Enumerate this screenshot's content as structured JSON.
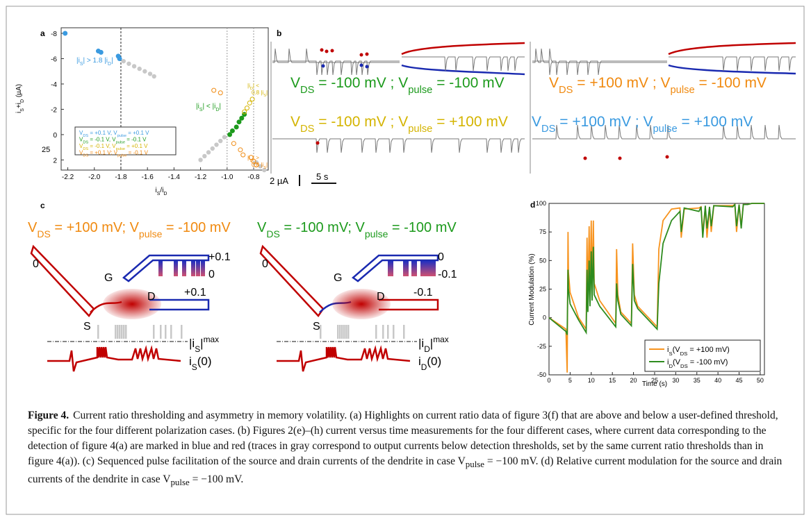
{
  "figure": {
    "panel_a": {
      "letter": "a",
      "xlabel": [
        "i",
        "S",
        "/i",
        "D"
      ],
      "ylabel": [
        "i",
        "S",
        "+i",
        "D",
        " (µA)"
      ],
      "edge_label": "25",
      "xlim": [
        -2.25,
        -0.69
      ],
      "ylim": [
        -8.44,
        2.8
      ],
      "xticks": [
        -2.2,
        {
          "value": -2,
          "label": "-2.0"
        },
        -1.8,
        -1.6,
        -1.4,
        -1.2,
        {
          "value": -1,
          "label": "-1.0"
        },
        -0.8
      ],
      "yticks": [
        -8,
        -6,
        -4,
        -2,
        0,
        2
      ],
      "thresholds": [
        -1.8,
        -1.0,
        -0.8
      ],
      "gray_points": {
        "color": "#c8c8c8",
        "x": [
          -1.78,
          -1.74,
          -1.7,
          -1.66,
          -1.62,
          -1.58,
          -1.55,
          -1.2,
          -1.17,
          -1.14,
          -1.11,
          -1.08,
          -1.05,
          -1.02,
          -0.78,
          -0.75,
          -0.72
        ],
        "y": [
          -5.8,
          -5.6,
          -5.4,
          -5.2,
          -5.0,
          -4.8,
          -4.6,
          2.0,
          1.7,
          1.4,
          1.1,
          0.8,
          0.5,
          0.2,
          2.2,
          2.5,
          2.8
        ]
      },
      "series": [
        {
          "name": [
            "V",
            "DS",
            " = +0.1 V, V",
            "pulse",
            " = +0.1 V"
          ],
          "color": "#3a9ae0",
          "filled": true,
          "x": [
            -2.22,
            -1.97,
            -1.95,
            -1.82,
            -1.81
          ],
          "y": [
            -8.0,
            -6.6,
            -6.5,
            -6.2,
            -6.0
          ]
        },
        {
          "name": [
            "V",
            "DS",
            " = -0.1 V, V",
            "pulse",
            " = -0.1 V"
          ],
          "color": "#1c9a1c",
          "filled": true,
          "x": [
            -0.98,
            -0.96,
            -0.93,
            -0.91,
            -0.89,
            -0.87
          ],
          "y": [
            0.0,
            -0.3,
            -0.6,
            -1.0,
            -1.3,
            -1.6
          ]
        },
        {
          "name": [
            "V",
            "DS",
            " = -0.1 V, V",
            "pulse",
            " = +0.1 V"
          ],
          "color": "#d4b400",
          "filled": false,
          "x": [
            -0.87,
            -0.85,
            -0.83,
            -0.81
          ],
          "y": [
            -1.8,
            -2.1,
            -2.5,
            -2.8
          ]
        },
        {
          "name": [
            "V",
            "DS",
            " = +0.1 V; V",
            "pulse",
            " = -0.1 V"
          ],
          "color": "#f08a10",
          "filled": false,
          "x": [
            -1.1,
            -1.05,
            -0.95,
            -0.9,
            -0.88,
            -0.82,
            -0.8,
            -0.78
          ],
          "y": [
            -3.5,
            -3.3,
            0.7,
            1.2,
            1.6,
            1.8,
            2.1,
            2.4
          ]
        }
      ],
      "annotations": [
        {
          "parts": [
            "|i",
            "S",
            "| > 1.8 |i",
            "D",
            "|"
          ],
          "color": "#3a9ae0"
        },
        {
          "parts": [
            "|i",
            "S",
            "| < |i",
            "D",
            "|"
          ],
          "color": "#1c9a1c"
        },
        {
          "parts": [
            "|i",
            "D",
            "| <"
          ],
          "color": "#d4b400"
        },
        {
          "parts": [
            "0.8 |i",
            "S",
            "|"
          ],
          "color": "#d4b400"
        },
        {
          "parts": [
            "|i",
            "D",
            "| >"
          ],
          "color": "#f08a10"
        },
        {
          "parts": [
            "0.8 |i",
            "S",
            "|"
          ],
          "color": "#f08a10"
        }
      ]
    },
    "panel_b": {
      "letter": "b",
      "labels": [
        {
          "parts": [
            "V",
            "DS",
            " = -100 mV ; V",
            "pulse",
            " = -100 mV"
          ],
          "color": "#1c9a1c"
        },
        {
          "parts": [
            "V",
            "DS",
            " = +100 mV ; V",
            "pulse",
            " = -100 mV"
          ],
          "color": "#f08a10"
        },
        {
          "parts": [
            "V",
            "DS",
            " = -100 mV ; V",
            "pulse",
            " = +100 mV"
          ],
          "color": "#d4b400"
        },
        {
          "parts": [
            "V",
            "DS",
            " = +100 mV ; V",
            "pulse",
            " = +100 mV"
          ],
          "color": "#3a9ae0"
        }
      ],
      "scale_current": "2 µA",
      "scale_time": "5 s"
    },
    "panel_c": {
      "letter": "c",
      "left": {
        "header": [
          "V",
          "DS",
          " = +100 mV; V",
          "pulse",
          " = -100 mV"
        ],
        "header_color": "#f08a10",
        "source": "0",
        "gate": "G",
        "gate_top": "+0.1",
        "gate_bottom": "0",
        "s": "S",
        "d": "D",
        "drain": "+0.1",
        "threshold": {
          "base": "|i",
          "sub": "S",
          "close": "|",
          "sup": "max"
        },
        "trace": [
          "i",
          "S",
          "(0)"
        ]
      },
      "right": {
        "header": [
          "V",
          "DS",
          " = -100 mV; V",
          "pulse",
          " = -100 mV"
        ],
        "header_color": "#1c9a1c",
        "source": "0",
        "gate": "G",
        "gate_top": "0",
        "gate_bottom": "-0.1",
        "s": "S",
        "d": "D",
        "drain": "-0.1",
        "threshold": {
          "base": "|i",
          "sub": "D",
          "close": "|",
          "sup": "max"
        },
        "trace": [
          "i",
          "D",
          "(0)"
        ]
      }
    },
    "panel_d": {
      "letter": "d",
      "xlabel": "Time (s)",
      "ylabel": "Current Modulation (%)",
      "xlim": [
        0,
        51
      ],
      "ylim": [
        -50,
        100
      ],
      "xticks": [
        0,
        5,
        10,
        15,
        20,
        25,
        30,
        35,
        40,
        45,
        50
      ],
      "yticks": [
        -50,
        -25,
        0,
        25,
        50,
        75,
        100
      ],
      "series": [
        {
          "name": [
            "i",
            "S",
            "(V",
            "DS",
            " = +100 mV)"
          ],
          "color": "#f7931e",
          "x": [
            0,
            2,
            4,
            4.3,
            4.5,
            4.6,
            5,
            7,
            8.8,
            9,
            9.2,
            9.5,
            9.7,
            10,
            10.2,
            10.5,
            10.7,
            12,
            15.8,
            16,
            16.3,
            17,
            19.5,
            19.8,
            20.2,
            21,
            25.6,
            26,
            27,
            29,
            31,
            31.3,
            32,
            35.5,
            36,
            36.4,
            37,
            37.4,
            38,
            38.4,
            39,
            43.5,
            44,
            44.4,
            45,
            45.5,
            46,
            47,
            48,
            50,
            51
          ],
          "values": [
            0,
            -5,
            -10,
            -48,
            75,
            40,
            22,
            0,
            -10,
            70,
            10,
            80,
            20,
            85,
            25,
            85,
            30,
            15,
            -5,
            60,
            20,
            5,
            -5,
            65,
            20,
            10,
            -8,
            60,
            85,
            95,
            96,
            70,
            95,
            96,
            97,
            75,
            96,
            70,
            97,
            75,
            98,
            98,
            99,
            75,
            99,
            80,
            99,
            99,
            100,
            100,
            100
          ]
        },
        {
          "name": [
            "i",
            "D",
            "(V",
            "DS",
            " = -100 mV)"
          ],
          "color": "#2e8b1e",
          "x": [
            0,
            2,
            4,
            4.3,
            4.5,
            4.6,
            5,
            7,
            8.8,
            9,
            9.2,
            9.5,
            9.7,
            10,
            10.2,
            10.5,
            10.7,
            12,
            15.8,
            16,
            16.3,
            17,
            19.5,
            19.8,
            20.2,
            21,
            25.6,
            26,
            27,
            29,
            31,
            31.3,
            32,
            35.5,
            36,
            36.4,
            37,
            37.4,
            38,
            38.4,
            39,
            43.5,
            44,
            44.4,
            45,
            45.5,
            46,
            47,
            48,
            50,
            51
          ],
          "values": [
            0,
            -6,
            -12,
            -15,
            42,
            25,
            12,
            -2,
            -13,
            42,
            5,
            50,
            10,
            58,
            15,
            62,
            20,
            10,
            -8,
            30,
            15,
            3,
            -7,
            47,
            15,
            8,
            -10,
            30,
            65,
            85,
            93,
            75,
            96,
            93,
            97,
            70,
            98,
            78,
            97,
            80,
            98,
            97,
            99,
            80,
            99,
            78,
            99,
            99,
            100,
            100,
            100
          ]
        }
      ]
    },
    "caption": {
      "label": "Figure 4.",
      "parts": [
        "Current ratio thresholding and asymmetry in memory volatility. (a) Highlights on current ratio data of figure 3(f) that are above and below a user-defined threshold, specific for the four different polarization cases. (b) Figures 2(e)–(h) current versus time measurements for the four different cases, where current data corresponding to the detection of figure 4(a) are marked in blue and red (traces in gray correspond to output currents below detection thresholds, set by the same current ratio thresholds than in figure 4(a)). (c) Sequenced pulse facilitation of the source and drain currents of the dendrite in case V",
        "pulse",
        " = −100 mV. (d) Relative current modulation for the source and drain currents of the dendrite in case V",
        "pulse",
        " = −100 mV."
      ]
    }
  }
}
